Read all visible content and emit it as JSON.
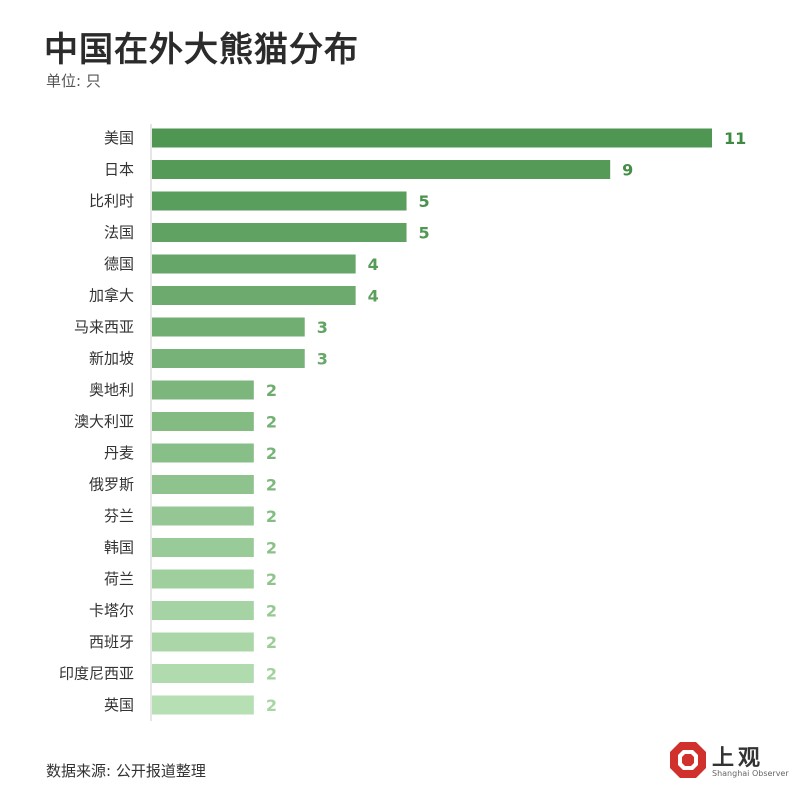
{
  "header": {
    "title": "中国在外大熊猫分布",
    "unit": "单位: 只"
  },
  "footer": {
    "source": "数据来源: 公开报道整理"
  },
  "logo": {
    "name": "上观",
    "subtitle": "Shanghai Observer",
    "accent": "#d0312d"
  },
  "chart_data": {
    "type": "bar",
    "orientation": "horizontal",
    "categories": [
      "美国",
      "日本",
      "比利时",
      "法国",
      "德国",
      "加拿大",
      "马来西亚",
      "新加坡",
      "奥地利",
      "澳大利亚",
      "丹麦",
      "俄罗斯",
      "芬兰",
      "韩国",
      "荷兰",
      "卡塔尔",
      "西班牙",
      "印度尼西亚",
      "英国"
    ],
    "values": [
      11,
      9,
      5,
      5,
      4,
      4,
      3,
      3,
      2,
      2,
      2,
      2,
      2,
      2,
      2,
      2,
      2,
      2,
      2
    ],
    "title": "中国在外大熊猫分布",
    "xlabel": "",
    "ylabel": "",
    "xlim": [
      0,
      11
    ],
    "grid": false,
    "legend": "none",
    "bar_color_start": "#4f9652",
    "bar_color_end": "#b6dfb3",
    "label_color_start": "#3f8a43",
    "label_color_end": "#a6d6a2"
  }
}
